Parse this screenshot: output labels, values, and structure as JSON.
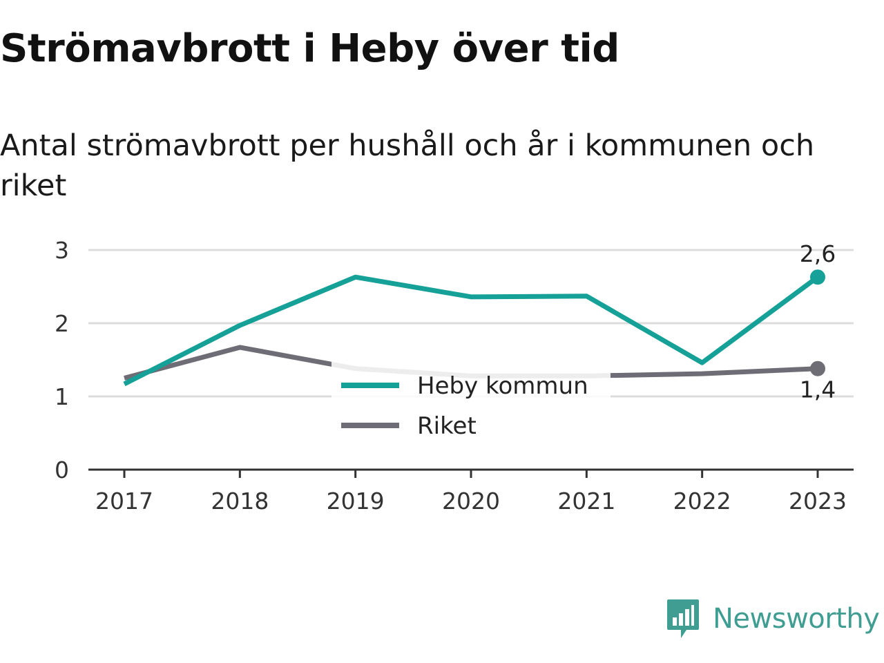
{
  "title": "Strömavbrott i Heby över tid",
  "subtitle": "Antal strömavbrott per hushåll och år i kommunen och riket",
  "brand": {
    "name": "Newsworthy",
    "color": "#3f9d92",
    "icon": "bar-chart-speech-bubble-icon"
  },
  "chart_data": {
    "type": "line",
    "x": [
      "2017",
      "2018",
      "2019",
      "2020",
      "2021",
      "2022",
      "2023"
    ],
    "ylim": [
      0,
      3
    ],
    "yticks": [
      "0",
      "1",
      "2",
      "3"
    ],
    "grid": true,
    "legend_position": "center",
    "series": [
      {
        "name": "Heby kommun",
        "color": "#15a197",
        "values": [
          1.17,
          1.97,
          2.63,
          2.36,
          2.37,
          1.46,
          2.63
        ],
        "end_label": "2,6"
      },
      {
        "name": "Riket",
        "color": "#6e6d75",
        "values": [
          1.25,
          1.67,
          1.38,
          1.28,
          1.28,
          1.31,
          1.38
        ],
        "end_label": "1,4"
      }
    ]
  }
}
